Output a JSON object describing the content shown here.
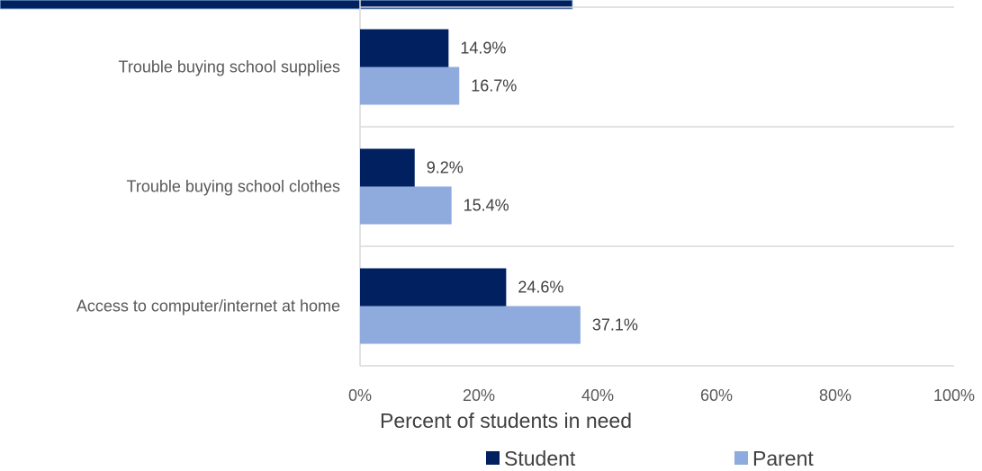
{
  "chart_data": {
    "type": "bar",
    "orientation": "horizontal",
    "categories": [
      "Trouble buying school supplies",
      "Trouble buying school clothes",
      "Access to computer/internet at home"
    ],
    "series": [
      {
        "name": "Student",
        "values": [
          14.9,
          9.2,
          24.6
        ],
        "labels": [
          "14.9%",
          "9.2%",
          "24.6%"
        ],
        "color": "#002060"
      },
      {
        "name": "Parent",
        "values": [
          16.7,
          15.4,
          37.1
        ],
        "labels": [
          "16.7%",
          "15.4%",
          "37.1%"
        ],
        "color": "#8FAADC"
      }
    ],
    "xlabel": "Percent of students in need",
    "xlim": [
      0,
      100
    ],
    "xticks": [
      "0%",
      "20%",
      "40%",
      "60%",
      "80%",
      "100%"
    ],
    "grid": "horizontal gridlines between categories",
    "legend_position": "bottom",
    "top_banner_color": "#002060"
  }
}
